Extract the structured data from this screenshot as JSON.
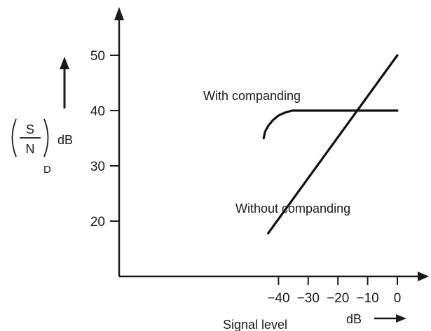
{
  "chart_data": {
    "type": "line",
    "title": "",
    "xlabel": "Signal level",
    "x_unit": "dB",
    "ylabel": {
      "numerator": "S",
      "denominator": "N",
      "subscript": "D",
      "unit": "dB"
    },
    "xlim": [
      -45,
      0
    ],
    "ylim": [
      10,
      50
    ],
    "x_ticks": [
      -40,
      -30,
      -20,
      -10,
      0
    ],
    "y_ticks": [
      20,
      30,
      40,
      50
    ],
    "grid": false,
    "series": [
      {
        "name": "With companding",
        "points": [
          [
            -45.0,
            35.0
          ],
          [
            -44.5,
            36.2
          ],
          [
            -43.5,
            37.2
          ],
          [
            -42.0,
            38.2
          ],
          [
            -40.0,
            39.1
          ],
          [
            -38.0,
            39.6
          ],
          [
            -35.5,
            40.0
          ],
          [
            -30.0,
            40.0
          ],
          [
            -20.0,
            40.0
          ],
          [
            -10.0,
            40.0
          ],
          [
            0.0,
            40.0
          ]
        ]
      },
      {
        "name": "Without companding",
        "points": [
          [
            -43.5,
            17.8
          ],
          [
            0.0,
            50.0
          ]
        ]
      }
    ],
    "colors": {
      "line": "#111111",
      "axis": "#1a1a1a"
    }
  }
}
